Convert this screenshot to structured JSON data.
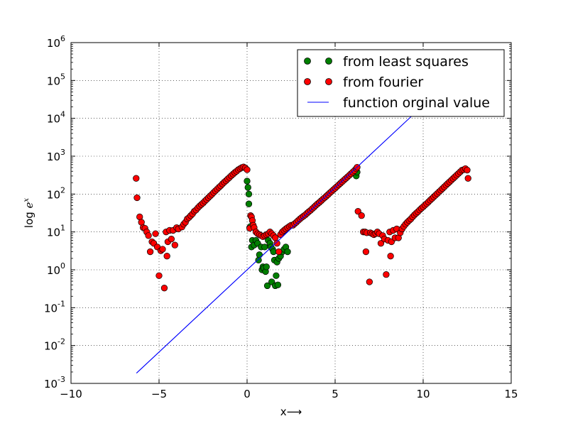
{
  "chart_data": {
    "type": "scatter",
    "xlabel": "x⟶",
    "ylabel": "log e^x",
    "xlim": [
      -10,
      15
    ],
    "ylim_exponent": [
      -3,
      6
    ],
    "yscale": "log",
    "grid": true,
    "legend_placement": "top-right",
    "x_ticks": [
      "−10",
      "−5",
      "0",
      "5",
      "10",
      "15"
    ],
    "y_ticks": [
      {
        "base": "10",
        "exp": "-3"
      },
      {
        "base": "10",
        "exp": "-2"
      },
      {
        "base": "10",
        "exp": "-1"
      },
      {
        "base": "10",
        "exp": "0"
      },
      {
        "base": "10",
        "exp": "1"
      },
      {
        "base": "10",
        "exp": "2"
      },
      {
        "base": "10",
        "exp": "3"
      },
      {
        "base": "10",
        "exp": "4"
      },
      {
        "base": "10",
        "exp": "5"
      },
      {
        "base": "10",
        "exp": "6"
      }
    ],
    "series": [
      {
        "name": "from least squares",
        "kind": "markers",
        "color": "#007f00",
        "points": [
          [
            0.0,
            220
          ],
          [
            0.05,
            150
          ],
          [
            0.1,
            100
          ],
          [
            0.1,
            55
          ],
          [
            0.15,
            13
          ],
          [
            0.2,
            14
          ],
          [
            0.25,
            4
          ],
          [
            0.3,
            6
          ],
          [
            0.4,
            4.5
          ],
          [
            0.5,
            6
          ],
          [
            0.6,
            5
          ],
          [
            0.65,
            1.8
          ],
          [
            0.7,
            2.5
          ],
          [
            0.8,
            4
          ],
          [
            0.85,
            1.0
          ],
          [
            0.9,
            1.2
          ],
          [
            0.95,
            1.1
          ],
          [
            1.0,
            4
          ],
          [
            1.05,
            0.9
          ],
          [
            1.1,
            1.2
          ],
          [
            1.15,
            0.38
          ],
          [
            1.2,
            6
          ],
          [
            1.3,
            5
          ],
          [
            1.35,
            4
          ],
          [
            1.4,
            0.48
          ],
          [
            1.45,
            3.5
          ],
          [
            1.5,
            3
          ],
          [
            1.55,
            1.8
          ],
          [
            1.6,
            0.38
          ],
          [
            1.65,
            0.7
          ],
          [
            1.7,
            1.6
          ],
          [
            1.75,
            0.4
          ],
          [
            1.8,
            2
          ],
          [
            1.9,
            2.3
          ],
          [
            2.0,
            3
          ],
          [
            2.1,
            3.5
          ],
          [
            2.2,
            4
          ],
          [
            2.3,
            3
          ],
          [
            6.2,
            300
          ],
          [
            6.25,
            380
          ]
        ]
      },
      {
        "name": "from fourier",
        "kind": "markers",
        "color": "#ff0000",
        "points": [
          [
            -6.3,
            260
          ],
          [
            -6.25,
            80
          ],
          [
            -6.1,
            25
          ],
          [
            -6.0,
            18
          ],
          [
            -5.9,
            13
          ],
          [
            -5.8,
            12.5
          ],
          [
            -5.7,
            10
          ],
          [
            -5.6,
            8
          ],
          [
            -5.5,
            3
          ],
          [
            -5.4,
            5.5
          ],
          [
            -5.3,
            5
          ],
          [
            -5.2,
            9
          ],
          [
            -5.1,
            4
          ],
          [
            -5.0,
            0.7
          ],
          [
            -4.9,
            3.2
          ],
          [
            -4.8,
            3.5
          ],
          [
            -4.7,
            0.33
          ],
          [
            -4.6,
            10
          ],
          [
            -4.55,
            2.3
          ],
          [
            -4.5,
            5.5
          ],
          [
            -4.4,
            11
          ],
          [
            -4.3,
            6.5
          ],
          [
            -4.2,
            11
          ],
          [
            -4.1,
            4.5
          ],
          [
            -4.0,
            13
          ],
          [
            -3.9,
            12
          ],
          [
            -3.7,
            13.5
          ],
          [
            -3.6,
            16
          ],
          [
            -3.5,
            18
          ],
          [
            -3.4,
            22
          ],
          [
            -3.3,
            24
          ],
          [
            -3.2,
            27
          ],
          [
            -3.1,
            30
          ],
          [
            -3.0,
            35
          ],
          [
            -2.9,
            38
          ],
          [
            -2.8,
            43
          ],
          [
            -2.7,
            48
          ],
          [
            -2.6,
            53
          ],
          [
            -2.5,
            58
          ],
          [
            -2.4,
            65
          ],
          [
            -2.3,
            72
          ],
          [
            -2.2,
            80
          ],
          [
            -2.1,
            89
          ],
          [
            -2.0,
            98
          ],
          [
            -1.9,
            110
          ],
          [
            -1.8,
            122
          ],
          [
            -1.7,
            135
          ],
          [
            -1.6,
            150
          ],
          [
            -1.5,
            165
          ],
          [
            -1.4,
            185
          ],
          [
            -1.3,
            205
          ],
          [
            -1.2,
            225
          ],
          [
            -1.1,
            250
          ],
          [
            -1.0,
            275
          ],
          [
            -0.9,
            305
          ],
          [
            -0.8,
            335
          ],
          [
            -0.7,
            370
          ],
          [
            -0.6,
            400
          ],
          [
            -0.5,
            440
          ],
          [
            -0.4,
            470
          ],
          [
            -0.3,
            500
          ],
          [
            -0.2,
            520
          ],
          [
            -0.1,
            490
          ],
          [
            0.0,
            440
          ],
          [
            0.15,
            12.5
          ],
          [
            0.2,
            27
          ],
          [
            0.25,
            25
          ],
          [
            0.3,
            20
          ],
          [
            0.35,
            15
          ],
          [
            0.4,
            13
          ],
          [
            0.5,
            10
          ],
          [
            0.6,
            9
          ],
          [
            0.7,
            8.5
          ],
          [
            0.8,
            8
          ],
          [
            0.9,
            7.5
          ],
          [
            1.0,
            8
          ],
          [
            1.1,
            8.5
          ],
          [
            1.2,
            9
          ],
          [
            1.3,
            10
          ],
          [
            1.4,
            9
          ],
          [
            1.5,
            8
          ],
          [
            1.6,
            7
          ],
          [
            1.7,
            5
          ],
          [
            1.8,
            3
          ],
          [
            1.9,
            8.5
          ],
          [
            2.0,
            10
          ],
          [
            2.1,
            11
          ],
          [
            2.2,
            12
          ],
          [
            2.3,
            13
          ],
          [
            2.4,
            14
          ],
          [
            2.5,
            15
          ],
          [
            2.6,
            15
          ],
          [
            2.7,
            16.5
          ],
          [
            2.8,
            18
          ],
          [
            2.9,
            20
          ],
          [
            3.0,
            22
          ],
          [
            3.1,
            24
          ],
          [
            3.2,
            26
          ],
          [
            3.3,
            28
          ],
          [
            3.4,
            31
          ],
          [
            3.5,
            34
          ],
          [
            3.6,
            37
          ],
          [
            3.7,
            41
          ],
          [
            3.8,
            45
          ],
          [
            3.9,
            50
          ],
          [
            4.0,
            55
          ],
          [
            4.1,
            60
          ],
          [
            4.2,
            66
          ],
          [
            4.3,
            73
          ],
          [
            4.4,
            80
          ],
          [
            4.5,
            88
          ],
          [
            4.6,
            97
          ],
          [
            4.7,
            107
          ],
          [
            4.8,
            118
          ],
          [
            4.9,
            130
          ],
          [
            5.0,
            143
          ],
          [
            5.1,
            158
          ],
          [
            5.2,
            174
          ],
          [
            5.3,
            192
          ],
          [
            5.4,
            212
          ],
          [
            5.5,
            233
          ],
          [
            5.6,
            257
          ],
          [
            5.7,
            283
          ],
          [
            5.8,
            312
          ],
          [
            5.9,
            344
          ],
          [
            6.0,
            379
          ],
          [
            6.1,
            418
          ],
          [
            6.2,
            470
          ],
          [
            6.25,
            510
          ],
          [
            6.3,
            35
          ],
          [
            6.5,
            27
          ],
          [
            6.6,
            10
          ],
          [
            6.7,
            10
          ],
          [
            6.75,
            3
          ],
          [
            6.8,
            9.5
          ],
          [
            6.95,
            0.48
          ],
          [
            7.0,
            9.5
          ],
          [
            7.1,
            9
          ],
          [
            7.2,
            8.5
          ],
          [
            7.3,
            9
          ],
          [
            7.4,
            10
          ],
          [
            7.5,
            9
          ],
          [
            7.6,
            5
          ],
          [
            7.7,
            8
          ],
          [
            7.8,
            6.5
          ],
          [
            7.9,
            0.75
          ],
          [
            8.0,
            6
          ],
          [
            8.1,
            10
          ],
          [
            8.15,
            2.3
          ],
          [
            8.2,
            5.5
          ],
          [
            8.3,
            11
          ],
          [
            8.4,
            7
          ],
          [
            8.5,
            12
          ],
          [
            8.6,
            7
          ],
          [
            8.7,
            9.5
          ],
          [
            8.8,
            12
          ],
          [
            8.9,
            14
          ],
          [
            9.0,
            16
          ],
          [
            9.1,
            18
          ],
          [
            9.2,
            20
          ],
          [
            9.3,
            22
          ],
          [
            9.4,
            25
          ],
          [
            9.5,
            28
          ],
          [
            9.6,
            31
          ],
          [
            9.7,
            34
          ],
          [
            9.8,
            38
          ],
          [
            9.9,
            42
          ],
          [
            10.0,
            46
          ],
          [
            10.1,
            51
          ],
          [
            10.2,
            56
          ],
          [
            10.3,
            62
          ],
          [
            10.4,
            69
          ],
          [
            10.5,
            76
          ],
          [
            10.6,
            84
          ],
          [
            10.7,
            93
          ],
          [
            10.8,
            103
          ],
          [
            10.9,
            114
          ],
          [
            11.0,
            126
          ],
          [
            11.1,
            140
          ],
          [
            11.2,
            155
          ],
          [
            11.3,
            172
          ],
          [
            11.4,
            190
          ],
          [
            11.5,
            210
          ],
          [
            11.6,
            232
          ],
          [
            11.7,
            257
          ],
          [
            11.8,
            284
          ],
          [
            11.9,
            314
          ],
          [
            12.0,
            347
          ],
          [
            12.1,
            384
          ],
          [
            12.2,
            425
          ],
          [
            12.3,
            440
          ],
          [
            12.4,
            470
          ],
          [
            12.5,
            430
          ],
          [
            12.55,
            260
          ]
        ]
      },
      {
        "name": "function orginal value",
        "kind": "line",
        "color": "#0000ff",
        "points": [
          [
            -6.28,
            0.00187
          ],
          [
            9.35,
            11500
          ]
        ]
      }
    ]
  }
}
